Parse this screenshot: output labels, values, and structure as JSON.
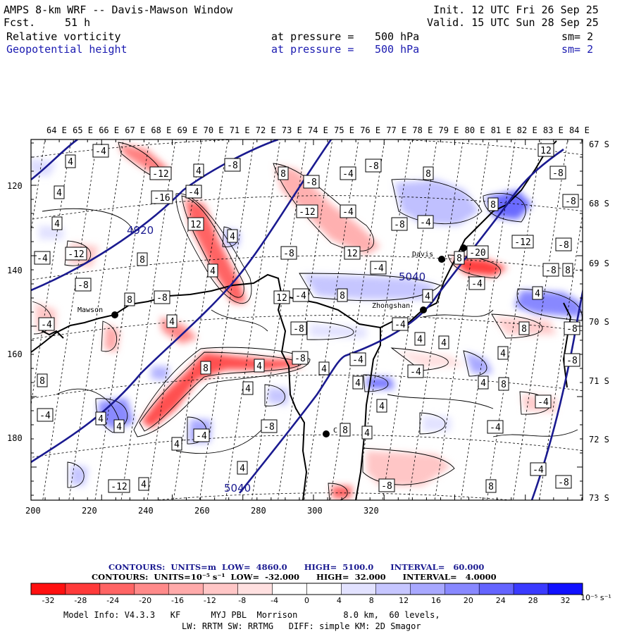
{
  "header": {
    "title": "AMPS 8-km WRF -- Davis-Mawson Window",
    "fcst_label": "Fcst.",
    "fcst_value": "51 h",
    "init": "Init. 12 UTC Fri 26 Sep 25",
    "valid": "Valid. 15 UTC Sun 28 Sep 25",
    "field1": "Relative vorticity",
    "field2": "Geopotential height",
    "pressure_label": "at pressure =",
    "pressure1": "500 hPa",
    "pressure2": "500 hPa",
    "sm1": "sm= 2",
    "sm2": "sm= 2"
  },
  "lon_labels": [
    "64 E",
    "65 E",
    "66 E",
    "67 E",
    "68 E",
    "69 E",
    "70 E",
    "71 E",
    "72 E",
    "73 E",
    "74 E",
    "75 E",
    "76 E",
    "77 E",
    "78 E",
    "79 E",
    "80 E",
    "81 E",
    "82 E",
    "83 E",
    "84 E"
  ],
  "lat_labels": [
    "67 S",
    "68 S",
    "69 S",
    "70 S",
    "71 S",
    "72 S",
    "73 S"
  ],
  "y_ticks": [
    "120",
    "140",
    "160",
    "180"
  ],
  "x_ticks": [
    "200",
    "220",
    "240",
    "260",
    "280",
    "300",
    "320"
  ],
  "stations": {
    "mawson": "Mawson",
    "davis": "Davis",
    "zhongshan": "Zhongshan",
    "other": "C"
  },
  "height_labels": [
    "4920",
    "5040",
    "5040"
  ],
  "vort_labels": [
    "-4",
    "4",
    "-12",
    "4",
    "-8",
    "8",
    "-4",
    "-8",
    "8",
    "12",
    "-8",
    "4",
    "-16",
    "-4",
    "-8",
    "4",
    "12",
    "-12",
    "-4",
    "-8",
    "-4",
    "8",
    "-8",
    "-12",
    "8",
    "4",
    "-8",
    "12",
    "-4",
    "8",
    "-20",
    "-12",
    "-8",
    "-4",
    "-8",
    "4",
    "-4",
    "8",
    "-4",
    "-8",
    "8",
    "4",
    "8",
    "-8",
    "12",
    "4",
    "-4",
    "4",
    "-8",
    "-4",
    "8",
    "-8",
    "4",
    "4",
    "4",
    "-8",
    "4",
    "-4",
    "8",
    "4",
    "-8",
    "8",
    "4",
    "4",
    "-4",
    "4",
    "8",
    "-4",
    "4",
    "4",
    "-8",
    "8",
    "4",
    "4",
    "-4",
    "-4",
    "4"
  ],
  "footer": {
    "contours1": "CONTOURS:  UNITS=m  LOW=  4860.0      HIGH=  5100.0      INTERVAL=   60.000",
    "contours2": "CONTOURS:  UNITS=10⁻⁵ s⁻¹  LOW=  -32.000      HIGH=  32.000      INTERVAL=   4.0000",
    "model_line1": "Model Info: V4.3.3   KF      MYJ PBL  Morrison         8.0 km,  60 levels,",
    "model_line2": "LW: RRTM SW: RRTMG   DIFF: simple KM: 2D Smagor"
  },
  "colorbar": {
    "labels": [
      "-32",
      "-28",
      "-24",
      "-20",
      "-16",
      "-12",
      "-8",
      "-4",
      "0",
      "4",
      "8",
      "12",
      "16",
      "20",
      "24",
      "28",
      "32"
    ],
    "units": "10⁻⁵ s⁻¹",
    "colors": [
      "#ff1010",
      "#ff3a3a",
      "#ff6464",
      "#ff8a8a",
      "#ffaaaa",
      "#ffc6c6",
      "#ffe0e0",
      "#ffffff",
      "#ffffff",
      "#e2e2ff",
      "#c6c6ff",
      "#a8a8ff",
      "#8888ff",
      "#6464ff",
      "#3a3aff",
      "#1010ff"
    ]
  }
}
